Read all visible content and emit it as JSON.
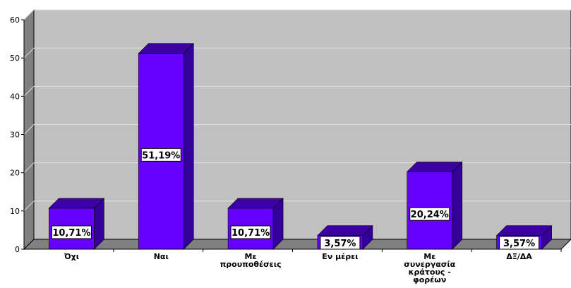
{
  "chart_data": {
    "type": "bar",
    "categories": [
      "Όχι",
      "Ναι",
      "Με προυποθέσεις",
      "Εν μέρει",
      "Με συνεργασία κράτους - φορέων",
      "ΔΞ/ΔΑ"
    ],
    "category_lines": [
      [
        "Όχι"
      ],
      [
        "Ναι"
      ],
      [
        "Με",
        "προυποθέσεις"
      ],
      [
        "Εν μέρει"
      ],
      [
        "Με",
        "συνεργασία",
        "κράτους -",
        "φορέων"
      ],
      [
        "ΔΞ/ΔΑ"
      ]
    ],
    "values": [
      10.71,
      51.19,
      10.71,
      3.57,
      20.24,
      3.57
    ],
    "data_labels": [
      "10,71%",
      "51,19%",
      "10,71%",
      "3,57%",
      "20,24%",
      "3,57%"
    ],
    "yticks": [
      0,
      10,
      20,
      30,
      40,
      50,
      60
    ],
    "ylim": [
      0,
      60
    ],
    "grid": true,
    "legend": "none",
    "colors": {
      "bar_front": "#6600ff",
      "bar_top": "#3d00a3",
      "bar_side": "#330099",
      "plot_back": "#c0c0c0",
      "plot_floor": "#808080",
      "plot_wall": "#808080",
      "grid": "#e0e0e0"
    }
  }
}
